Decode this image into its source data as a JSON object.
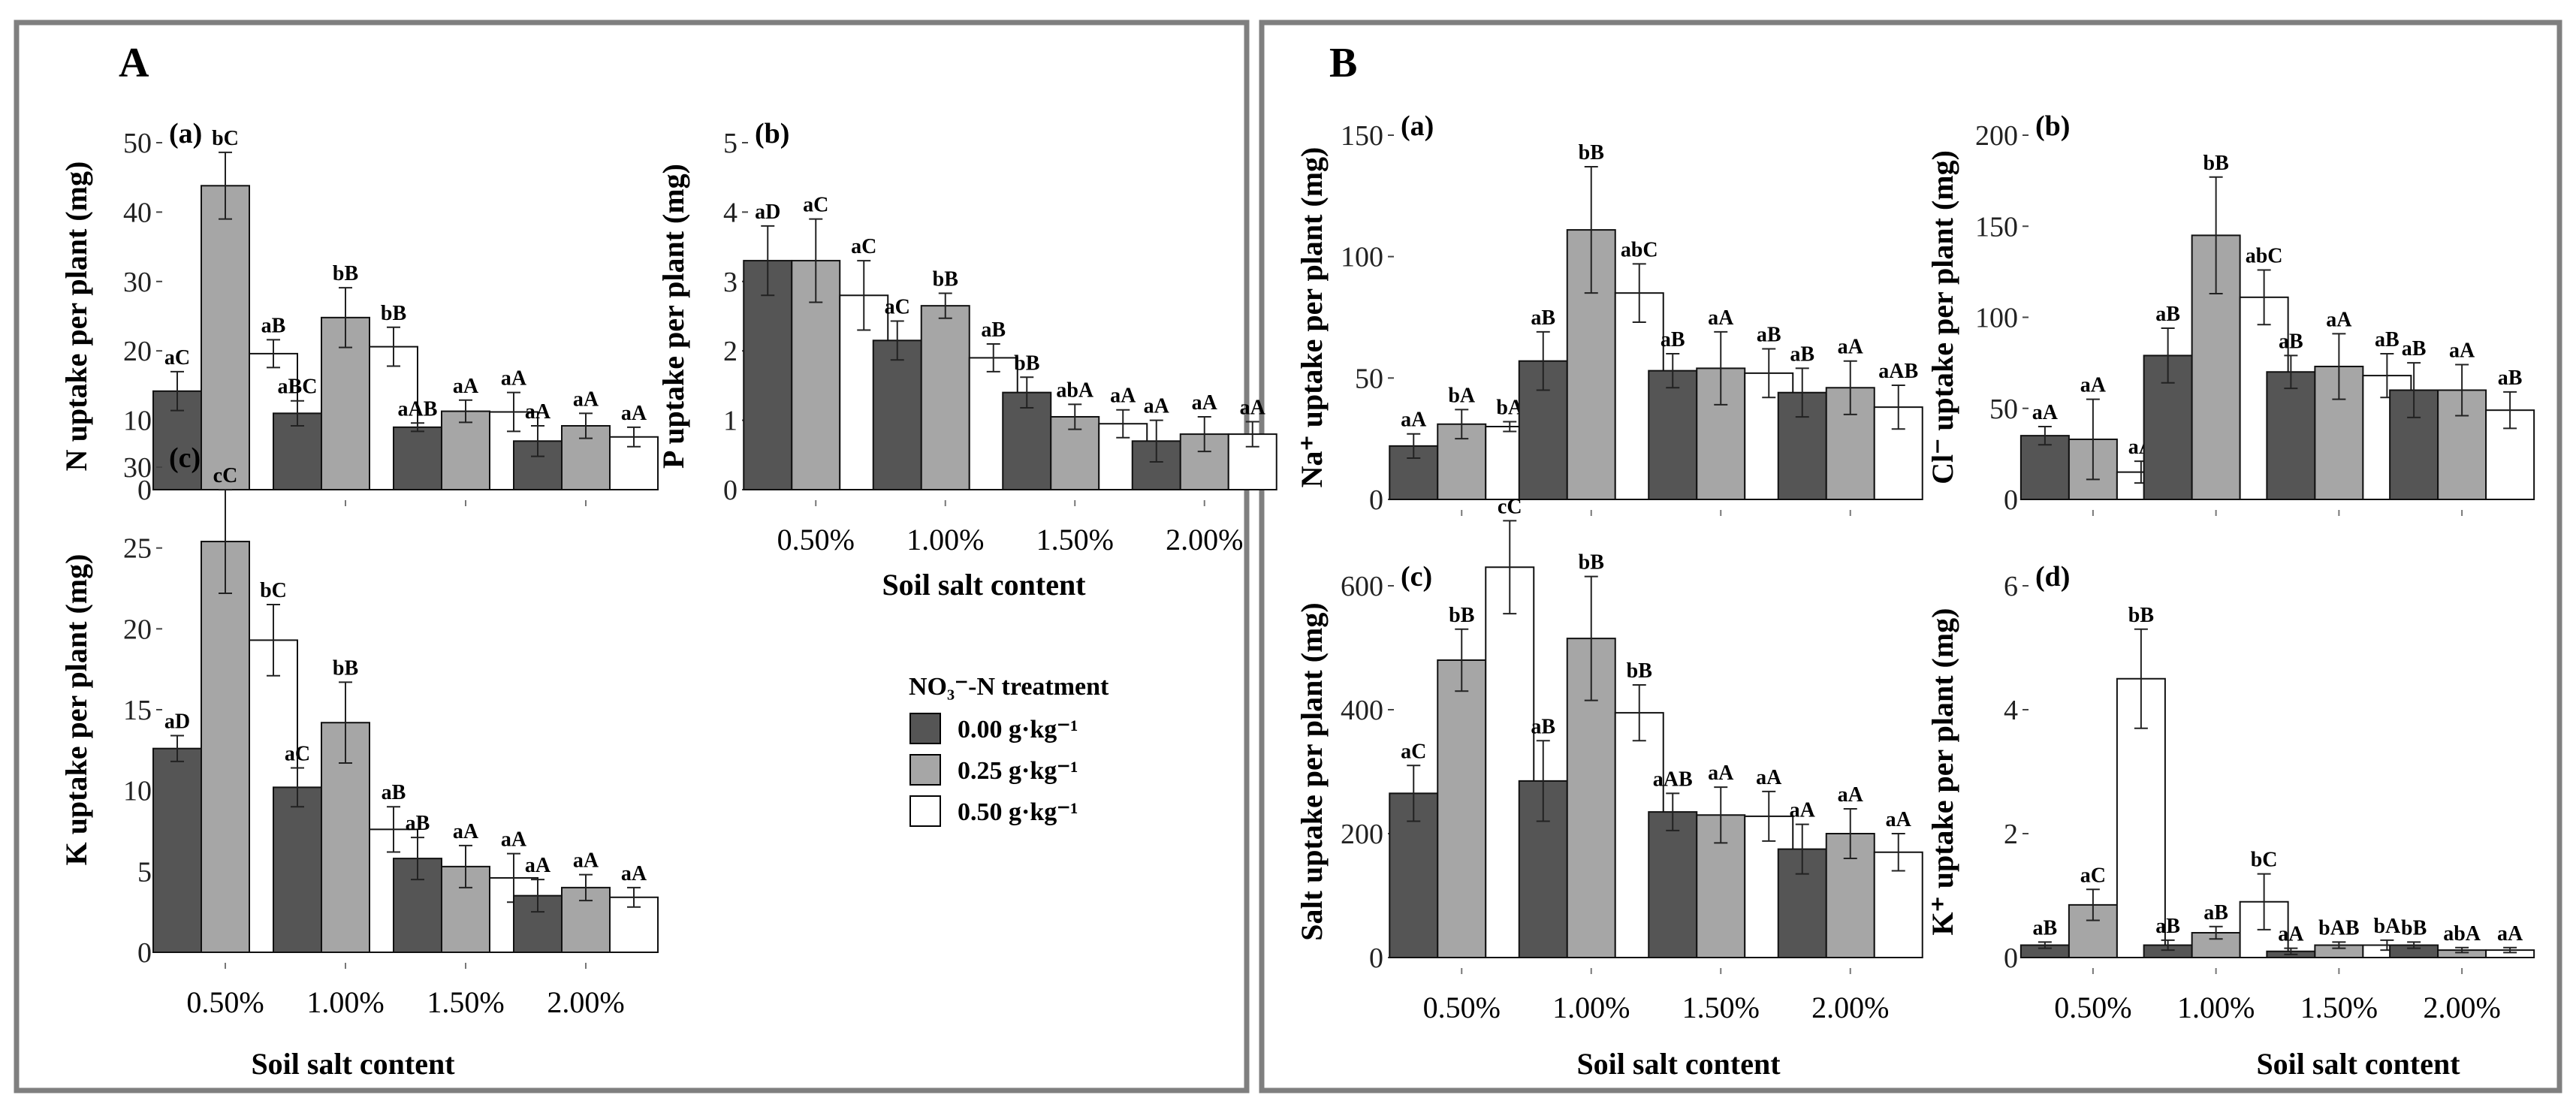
{
  "figure": {
    "colors": {
      "c0": "#555555",
      "c1": "#a6a6a6",
      "c2": "#ffffff",
      "border": "#7f7f7f"
    },
    "panels": [
      {
        "letter": "A",
        "xlabels": [
          "Soil salt content",
          "Soil salt content"
        ]
      },
      {
        "letter": "B",
        "xlabels": [
          "Soil salt content",
          "Soil salt content"
        ]
      }
    ],
    "legend": {
      "title": "NO₃⁻-N treatment",
      "entries": [
        "0.00 g·kg⁻¹",
        "0.25 g·kg⁻¹",
        "0.50 g·kg⁻¹"
      ],
      "placement": "between panel A charts (b) and (c)"
    }
  },
  "chart_data": [
    {
      "type": "bar",
      "panel": "A",
      "label": "(a)",
      "ylabel": "N uptake per plant (mg)",
      "ylim": [
        0,
        50
      ],
      "yticks": [
        0,
        10,
        20,
        30,
        40,
        50
      ],
      "categories": [
        "0.50%",
        "1.00%",
        "1.50%",
        "2.00%"
      ],
      "show_categories": false,
      "series": [
        {
          "name": "0.00 g·kg⁻¹",
          "values": [
            14.2,
            11.0,
            9.0,
            7.0
          ],
          "errors": [
            2.8,
            1.8,
            0.6,
            2.2
          ],
          "letters": [
            "aC",
            "aBC",
            "aAB",
            "aA"
          ]
        },
        {
          "name": "0.25 g·kg⁻¹",
          "values": [
            43.8,
            24.8,
            11.3,
            9.2
          ],
          "errors": [
            4.8,
            4.3,
            1.6,
            1.8
          ],
          "letters": [
            "bC",
            "bB",
            "aA",
            "aA"
          ]
        },
        {
          "name": "0.50 g·kg⁻¹",
          "values": [
            19.6,
            20.6,
            11.2,
            7.6
          ],
          "errors": [
            2.0,
            2.8,
            2.8,
            1.4
          ],
          "letters": [
            "aB",
            "bB",
            "aA",
            "aA"
          ]
        }
      ]
    },
    {
      "type": "bar",
      "panel": "A",
      "label": "(b)",
      "ylabel": "P uptake per plant (mg)",
      "ylim": [
        0,
        5
      ],
      "yticks": [
        0,
        1,
        2,
        3,
        4,
        5
      ],
      "categories": [
        "0.50%",
        "1.00%",
        "1.50%",
        "2.00%"
      ],
      "show_categories": true,
      "series": [
        {
          "name": "0.00 g·kg⁻¹",
          "values": [
            3.3,
            2.15,
            1.4,
            0.7
          ],
          "errors": [
            0.5,
            0.28,
            0.22,
            0.3
          ],
          "letters": [
            "aD",
            "aC",
            "bB",
            "aA"
          ]
        },
        {
          "name": "0.25 g·kg⁻¹",
          "values": [
            3.3,
            2.65,
            1.05,
            0.8
          ],
          "errors": [
            0.6,
            0.18,
            0.18,
            0.25
          ],
          "letters": [
            "aC",
            "bB",
            "abA",
            "aA"
          ]
        },
        {
          "name": "0.50 g·kg⁻¹",
          "values": [
            2.8,
            1.9,
            0.95,
            0.8
          ],
          "errors": [
            0.5,
            0.2,
            0.2,
            0.18
          ],
          "letters": [
            "aC",
            "aB",
            "aA",
            "aA"
          ]
        }
      ]
    },
    {
      "type": "bar",
      "panel": "A",
      "label": "(c)",
      "ylabel": "K uptake per plant (mg)",
      "ylim": [
        0,
        30
      ],
      "yticks": [
        0,
        5,
        10,
        15,
        20,
        25,
        30
      ],
      "categories": [
        "0.50%",
        "1.00%",
        "1.50%",
        "2.00%"
      ],
      "show_categories": true,
      "series": [
        {
          "name": "0.00 g·kg⁻¹",
          "values": [
            12.6,
            10.2,
            5.8,
            3.5
          ],
          "errors": [
            0.8,
            1.2,
            1.3,
            1.0
          ],
          "letters": [
            "aD",
            "aC",
            "aB",
            "aA"
          ]
        },
        {
          "name": "0.25 g·kg⁻¹",
          "values": [
            25.4,
            14.2,
            5.3,
            4.0
          ],
          "errors": [
            3.2,
            2.5,
            1.3,
            0.8
          ],
          "letters": [
            "cC",
            "bB",
            "aA",
            "aA"
          ]
        },
        {
          "name": "0.50 g·kg⁻¹",
          "values": [
            19.3,
            7.6,
            4.6,
            3.4
          ],
          "errors": [
            2.2,
            1.4,
            1.5,
            0.6
          ],
          "letters": [
            "bC",
            "aB",
            "aA",
            "aA"
          ]
        }
      ]
    },
    {
      "type": "bar",
      "panel": "B",
      "label": "(a)",
      "ylabel": "Na⁺ uptake per plant (mg)",
      "ylim": [
        0,
        150
      ],
      "yticks": [
        0,
        50,
        100,
        150
      ],
      "categories": [
        "0.50%",
        "1.00%",
        "1.50%",
        "2.00%"
      ],
      "show_categories": false,
      "series": [
        {
          "name": "0.00 g·kg⁻¹",
          "values": [
            22,
            57,
            53,
            44
          ],
          "errors": [
            5,
            12,
            7,
            10
          ],
          "letters": [
            "aA",
            "aB",
            "aB",
            "aB"
          ]
        },
        {
          "name": "0.25 g·kg⁻¹",
          "values": [
            31,
            111,
            54,
            46
          ],
          "errors": [
            6,
            26,
            15,
            11
          ],
          "letters": [
            "bA",
            "bB",
            "aA",
            "aA"
          ]
        },
        {
          "name": "0.50 g·kg⁻¹",
          "values": [
            30,
            85,
            52,
            38
          ],
          "errors": [
            2,
            12,
            10,
            9
          ],
          "letters": [
            "bA",
            "abC",
            "aB",
            "aAB"
          ]
        }
      ]
    },
    {
      "type": "bar",
      "panel": "B",
      "label": "(b)",
      "ylabel": "Cl⁻ uptake per plant (mg)",
      "ylim": [
        0,
        200
      ],
      "yticks": [
        0,
        50,
        100,
        150,
        200
      ],
      "categories": [
        "0.50%",
        "1.00%",
        "1.50%",
        "2.00%"
      ],
      "show_categories": false,
      "series": [
        {
          "name": "0.00 g·kg⁻¹",
          "values": [
            35,
            79,
            70,
            60
          ],
          "errors": [
            5,
            15,
            9,
            15
          ],
          "letters": [
            "aA",
            "aB",
            "aB",
            "aB"
          ]
        },
        {
          "name": "0.25 g·kg⁻¹",
          "values": [
            33,
            145,
            73,
            60
          ],
          "errors": [
            22,
            32,
            18,
            14
          ],
          "letters": [
            "aA",
            "bB",
            "aA",
            "aA"
          ]
        },
        {
          "name": "0.50 g·kg⁻¹",
          "values": [
            15,
            111,
            68,
            49
          ],
          "errors": [
            6,
            15,
            12,
            10
          ],
          "letters": [
            "aA",
            "abC",
            "aB",
            "aB"
          ]
        }
      ]
    },
    {
      "type": "bar",
      "panel": "B",
      "label": "(c)",
      "ylabel": "Salt uptake per plant (mg)",
      "ylim": [
        0,
        700
      ],
      "yticks": [
        0,
        200,
        400,
        600
      ],
      "categories": [
        "0.50%",
        "1.00%",
        "1.50%",
        "2.00%"
      ],
      "show_categories": true,
      "series": [
        {
          "name": "0.00 g·kg⁻¹",
          "values": [
            265,
            285,
            235,
            175
          ],
          "errors": [
            45,
            65,
            30,
            40
          ],
          "letters": [
            "aC",
            "aB",
            "aAB",
            "aA"
          ]
        },
        {
          "name": "0.25 g·kg⁻¹",
          "values": [
            480,
            515,
            230,
            200
          ],
          "errors": [
            50,
            100,
            45,
            40
          ],
          "letters": [
            "bB",
            "bB",
            "aA",
            "aA"
          ]
        },
        {
          "name": "0.50 g·kg⁻¹",
          "values": [
            630,
            395,
            228,
            170
          ],
          "errors": [
            75,
            45,
            40,
            30
          ],
          "letters": [
            "cC",
            "bB",
            "aA",
            "aA"
          ]
        }
      ]
    },
    {
      "type": "bar",
      "panel": "B",
      "label": "(d)",
      "ylabel": "K⁺ uptake per plant (mg)",
      "ylim": [
        0,
        6.5
      ],
      "yticks": [
        0,
        2,
        4,
        6
      ],
      "categories": [
        "0.50%",
        "1.00%",
        "1.50%",
        "2.00%"
      ],
      "show_categories": true,
      "series": [
        {
          "name": "0.00 g·kg⁻¹",
          "values": [
            0.2,
            0.2,
            0.1,
            0.2
          ],
          "errors": [
            0.05,
            0.08,
            0.05,
            0.05
          ],
          "letters": [
            "aB",
            "aB",
            "aA",
            "bB"
          ]
        },
        {
          "name": "0.25 g·kg⁻¹",
          "values": [
            0.85,
            0.4,
            0.2,
            0.12
          ],
          "errors": [
            0.25,
            0.1,
            0.05,
            0.04
          ],
          "letters": [
            "aC",
            "aB",
            "bAB",
            "abA"
          ]
        },
        {
          "name": "0.50 g·kg⁻¹",
          "values": [
            4.5,
            0.9,
            0.2,
            0.12
          ],
          "errors": [
            0.8,
            0.45,
            0.08,
            0.04
          ],
          "letters": [
            "bB",
            "bC",
            "bA",
            "aA"
          ]
        }
      ]
    }
  ]
}
